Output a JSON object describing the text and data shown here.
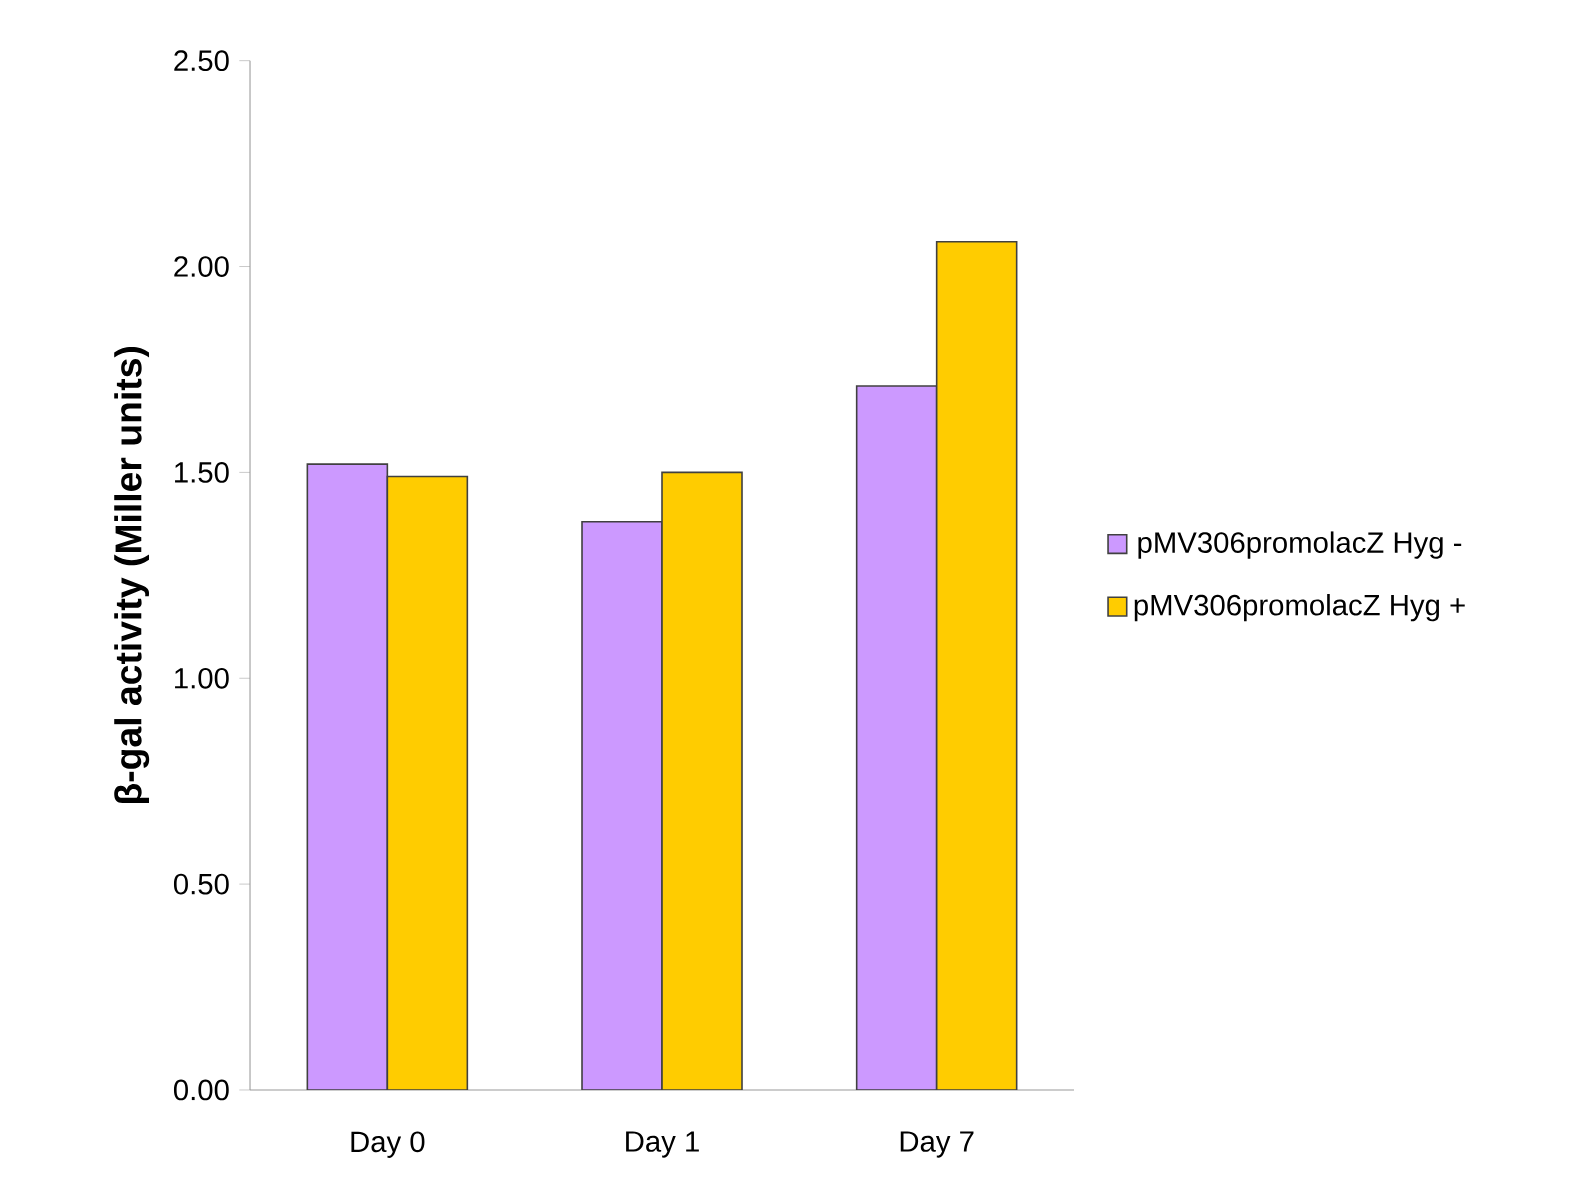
{
  "chart_data": {
    "type": "bar",
    "ylabel": "β-gal activity (Miller units)",
    "categories": [
      "Day 0",
      "Day 1",
      "Day 7"
    ],
    "series": [
      {
        "name": "pMV306promolacZ Hyg -",
        "color": "#cc99ff",
        "values": [
          1.52,
          1.38,
          1.71
        ]
      },
      {
        "name": "pMV306promolacZ Hyg +",
        "color": "#ffcc00",
        "values": [
          1.49,
          1.5,
          2.06
        ]
      }
    ],
    "ylim": [
      0,
      2.5
    ],
    "yticks": [
      {
        "value": 0,
        "label": "0.00"
      },
      {
        "value": 0.5,
        "label": "0.50"
      },
      {
        "value": 1,
        "label": "1.00"
      },
      {
        "value": 1.5,
        "label": "1.50"
      },
      {
        "value": 2,
        "label": "2.00"
      },
      {
        "value": 2.5,
        "label": "2.50"
      }
    ],
    "grid": false,
    "legend": "right"
  }
}
